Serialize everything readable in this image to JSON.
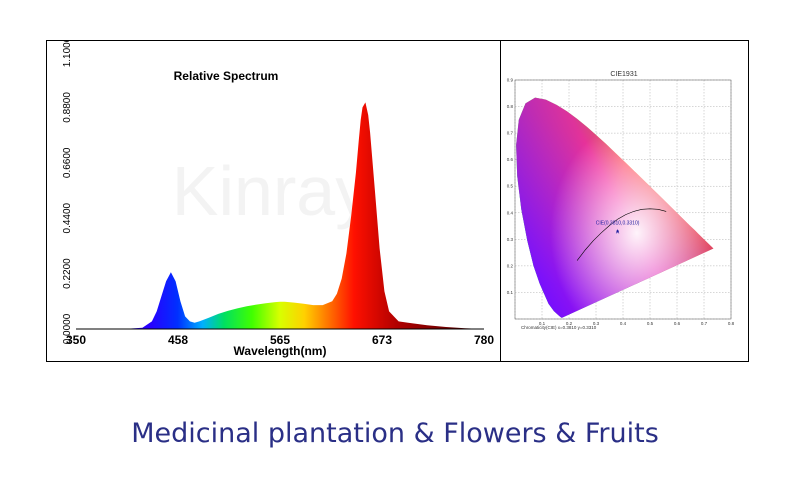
{
  "caption": "Medicinal plantation & Flowers & Fruits",
  "chart_data": [
    {
      "type": "area",
      "title": "Relative Spectrum",
      "xlabel": "Wavelength(nm)",
      "ylabel": "",
      "xlim": [
        350,
        780
      ],
      "ylim": [
        0,
        1.1
      ],
      "x_ticks": [
        "350",
        "458",
        "565",
        "673",
        "780"
      ],
      "y_ticks": [
        "0.0000",
        "0.2200",
        "0.4400",
        "0.6600",
        "0.8800",
        "1.1000"
      ],
      "x": [
        400,
        420,
        430,
        435,
        440,
        445,
        450,
        455,
        460,
        465,
        470,
        475,
        480,
        490,
        500,
        510,
        520,
        530,
        540,
        550,
        560,
        565,
        570,
        580,
        590,
        600,
        610,
        620,
        625,
        630,
        635,
        640,
        645,
        648,
        650,
        652,
        655,
        658,
        660,
        665,
        670,
        675,
        680,
        690,
        700,
        710,
        720,
        740,
        760,
        780
      ],
      "values": [
        0,
        0.005,
        0.03,
        0.07,
        0.13,
        0.19,
        0.225,
        0.19,
        0.11,
        0.05,
        0.03,
        0.025,
        0.03,
        0.045,
        0.06,
        0.072,
        0.082,
        0.09,
        0.097,
        0.102,
        0.107,
        0.108,
        0.108,
        0.105,
        0.1,
        0.095,
        0.095,
        0.11,
        0.14,
        0.2,
        0.3,
        0.45,
        0.62,
        0.75,
        0.83,
        0.88,
        0.9,
        0.85,
        0.78,
        0.55,
        0.32,
        0.15,
        0.07,
        0.03,
        0.025,
        0.02,
        0.015,
        0.008,
        0.003,
        0
      ],
      "grid": false,
      "legend": "none"
    },
    {
      "type": "scatter",
      "title": "CIE1931",
      "xlabel": "",
      "ylabel": "",
      "xlim": [
        0,
        0.8
      ],
      "ylim": [
        0,
        0.9
      ],
      "x_ticks": [
        "0.1",
        "0.2",
        "0.3",
        "0.4",
        "0.5",
        "0.6",
        "0.7",
        "0.8"
      ],
      "y_ticks": [
        "0.1",
        "0.2",
        "0.3",
        "0.4",
        "0.5",
        "0.6",
        "0.7",
        "0.8",
        "0.9"
      ],
      "x": [
        0.38
      ],
      "values": [
        0.33
      ],
      "point_label": "CIE(0.3810,0.3310)",
      "point_marker": "A",
      "footnote": "Chromaticity(CIE)  x=0.3810  y=0.3310",
      "grid": true,
      "legend": "none"
    }
  ],
  "watermark": "Kinray"
}
